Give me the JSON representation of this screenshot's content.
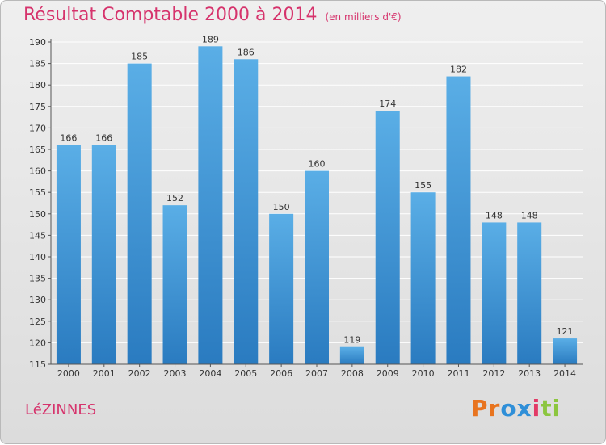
{
  "header": {
    "title": "Résultat Comptable 2000 à 2014",
    "unit": "(en milliers d'€)"
  },
  "footer": {
    "commune": "LéZINNES",
    "logo_letters": [
      "P",
      "r",
      "o",
      "x",
      "i",
      "t",
      "i"
    ]
  },
  "colors": {
    "title": "#d6336c",
    "bar_top": "#5aaee6",
    "bar_bottom": "#2a7bc0",
    "logo": [
      "#e8741f",
      "#e8741f",
      "#2f8fd8",
      "#2f8fd8",
      "#e23a66",
      "#8cc63f",
      "#8cc63f"
    ]
  },
  "chart_data": {
    "type": "bar",
    "title": "Résultat Comptable 2000 à 2014",
    "ylabel": "",
    "xlabel": "",
    "categories": [
      "2000",
      "2001",
      "2002",
      "2003",
      "2004",
      "2005",
      "2006",
      "2007",
      "2008",
      "2009",
      "2010",
      "2011",
      "2012",
      "2013",
      "2014"
    ],
    "values": [
      166,
      166,
      185,
      152,
      189,
      186,
      150,
      160,
      119,
      174,
      155,
      182,
      148,
      148,
      121
    ],
    "ylim": [
      115,
      190
    ],
    "yticks": [
      115,
      120,
      125,
      130,
      135,
      140,
      145,
      150,
      155,
      160,
      165,
      170,
      175,
      180,
      185,
      190
    ],
    "grid": true
  }
}
